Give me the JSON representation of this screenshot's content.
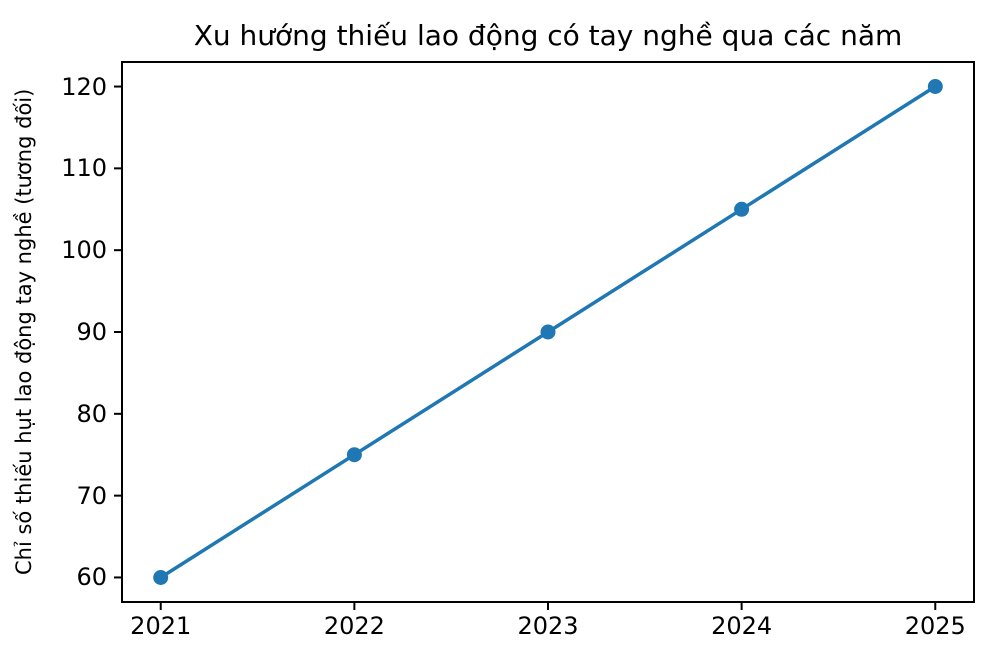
{
  "chart_data": {
    "type": "line",
    "title": "Xu hướng thiếu lao động có tay nghề qua các năm",
    "xlabel": "",
    "ylabel": "Chỉ số thiếu hụt lao động tay nghề (tương đối)",
    "x": [
      2021,
      2022,
      2023,
      2024,
      2025
    ],
    "series": [
      {
        "values": [
          60,
          75,
          90,
          105,
          120
        ],
        "color": "#1f77b4",
        "marker": "circle"
      }
    ],
    "x_ticks": [
      "2021",
      "2022",
      "2023",
      "2024",
      "2025"
    ],
    "y_ticks": [
      60,
      70,
      80,
      90,
      100,
      110,
      120
    ],
    "xlim": [
      2020.8,
      2025.2
    ],
    "ylim": [
      57,
      123
    ],
    "grid": false,
    "legend": "none"
  },
  "colors": {
    "line": "#1f77b4",
    "spine": "#000000",
    "text": "#000000",
    "background": "#ffffff"
  }
}
